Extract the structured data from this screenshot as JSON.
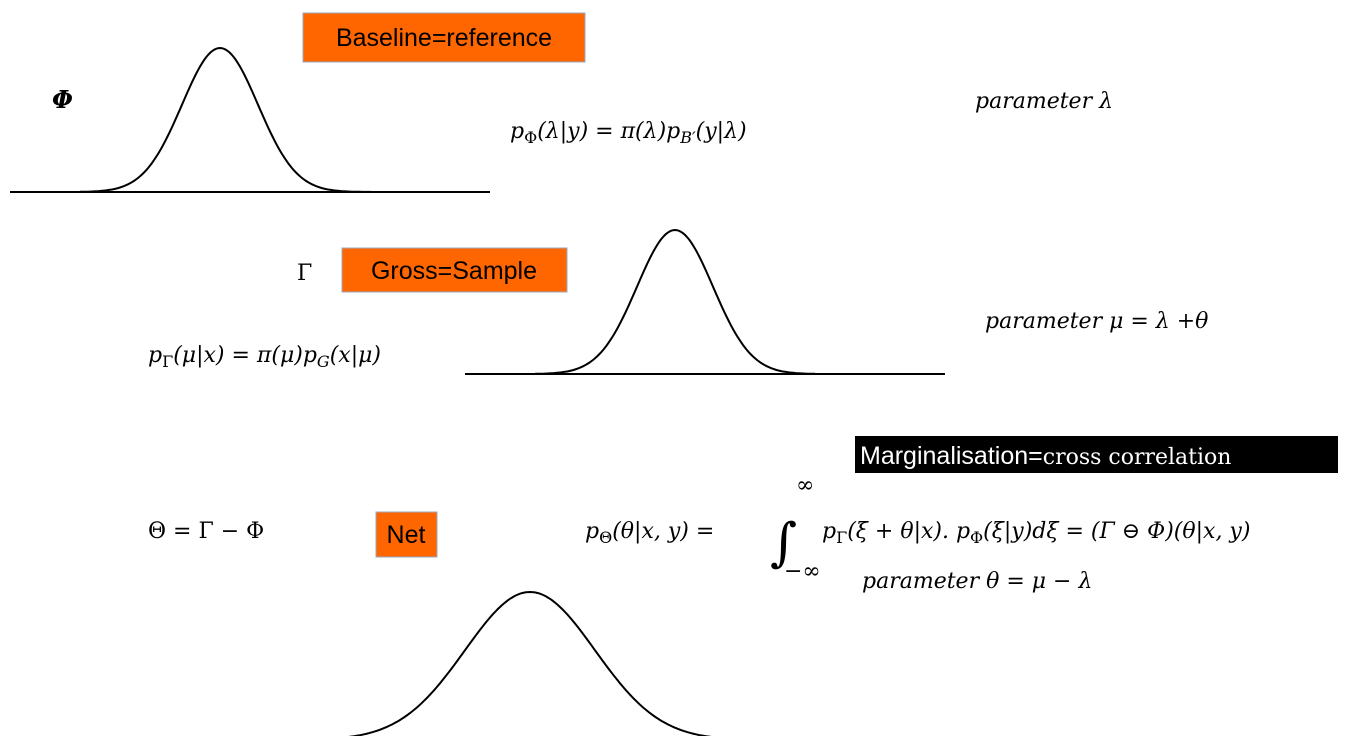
{
  "labels": {
    "baseline": "Baseline=reference",
    "gross": "Gross=Sample",
    "net": "Net",
    "marginalisation": [
      "Marginalisation=",
      "cross correlation"
    ]
  },
  "symbols": {
    "phi": "Φ",
    "gamma": "Γ"
  },
  "formulas": {
    "baseline": [
      "p",
      "Φ",
      "(λ|y) = π(λ)p",
      "B′",
      "(y|λ)"
    ],
    "gross": [
      "p",
      "Γ",
      "(μ|x) = π(μ)p",
      "G",
      "(x|μ)"
    ],
    "net_def": "Θ = Γ − Φ",
    "net": [
      "p",
      "Θ",
      "(θ|x, y) = ",
      "∫",
      "∞",
      "−∞",
      "p",
      "Γ",
      "(ξ + θ|x). p",
      "Φ",
      "(ξ|y)dξ  = (Γ ⊖ Φ)(θ|x, y)"
    ]
  },
  "parameters": {
    "lambda": "parameter λ",
    "mu": "parameter μ = λ +θ",
    "theta": "parameter θ = μ − λ"
  }
}
